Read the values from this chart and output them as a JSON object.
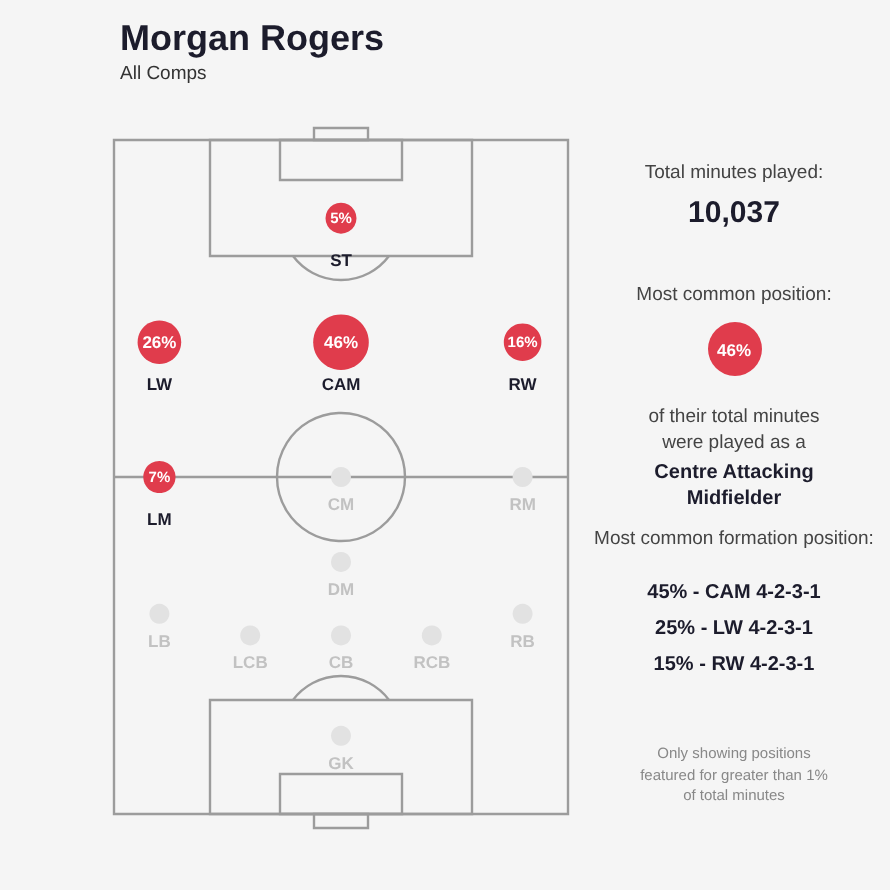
{
  "chart_data": {
    "type": "other",
    "title": "Morgan Rogers",
    "subtitle": "All Comps",
    "categories": [
      "ST",
      "LW",
      "CAM",
      "RW",
      "LM",
      "CM",
      "RM",
      "DM",
      "LB",
      "LCB",
      "CB",
      "RCB",
      "RB",
      "GK"
    ],
    "values": [
      5,
      26,
      46,
      16,
      7,
      null,
      null,
      null,
      null,
      null,
      null,
      null,
      null,
      null
    ],
    "value_labels": [
      "5%",
      "26%",
      "46%",
      "16%",
      "7%",
      null,
      null,
      null,
      null,
      null,
      null,
      null,
      null,
      null
    ],
    "colors": [
      "#e03c4c",
      "#e03c4c",
      "#e03c4c",
      "#e03c4c",
      "#e03c4c",
      "#e2e2e2",
      "#e2e2e2",
      "#e2e2e2",
      "#e2e2e2",
      "#e2e2e2",
      "#e2e2e2",
      "#e2e2e2",
      "#e2e2e2",
      "#e2e2e2"
    ],
    "annotations": [
      "Total minutes played:",
      "10,037",
      "Most common position:",
      "46%",
      "of their total minutes were played as a",
      "Centre Attacking Midfielder",
      "Most common formation position:",
      "45% - CAM 4-2-3-1",
      "25% - LW 4-2-3-1",
      "15% - RW 4-2-3-1",
      "Only showing positions featured for greater than 1% of total minutes"
    ]
  }
}
